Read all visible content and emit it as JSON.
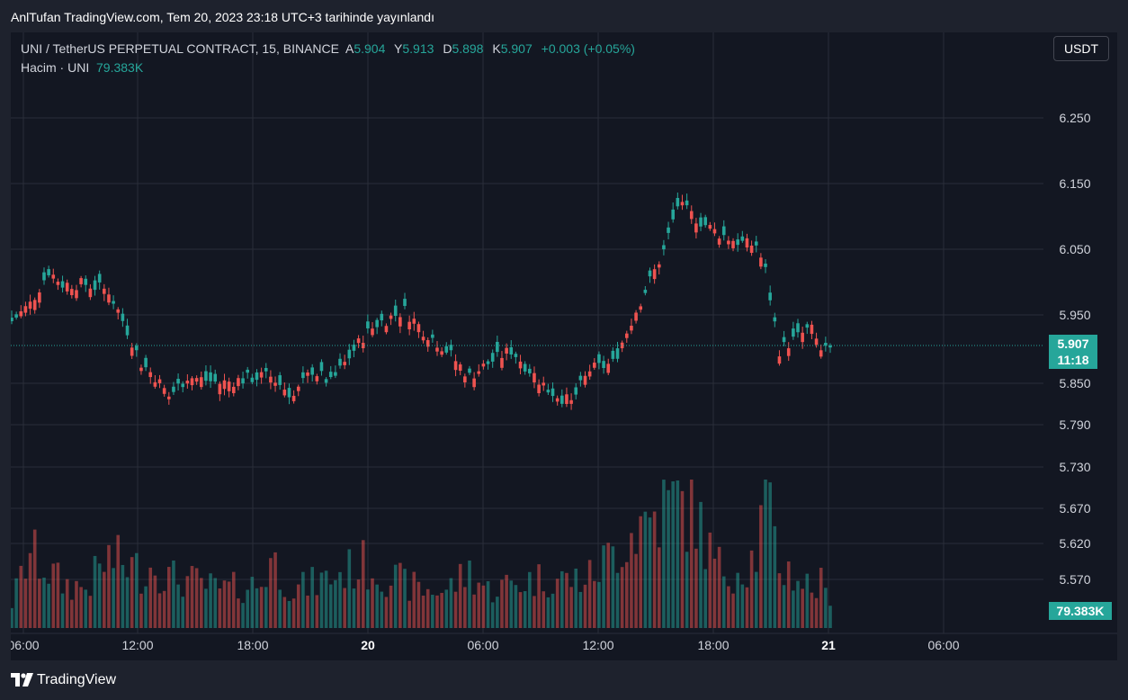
{
  "publish_note": "AnlTufan TradingView.com, Tem 20, 2023 23:18 UTC+3 tarihinde yayınlandı",
  "legend": {
    "symbol": "UNI / TetherUS PERPETUAL CONTRACT, 15, BINANCE",
    "open_label": "A",
    "open": "5.904",
    "high_label": "Y",
    "high": "5.913",
    "low_label": "D",
    "low": "5.898",
    "close_label": "K",
    "close": "5.907",
    "change": "+0.003 (+0.05%)",
    "volume_label": "Hacim · UNI",
    "volume": "79.383K"
  },
  "currency": "USDT",
  "price_badge": {
    "price": "5.907",
    "countdown": "11:18"
  },
  "volume_badge": "79.383K",
  "footer_brand": "TradingView",
  "colors": {
    "up": "#26a69a",
    "down": "#ef5350",
    "background": "#131722",
    "grid": "#2a2e39",
    "text": "#d1d4dc"
  },
  "chart_data": {
    "type": "candlestick",
    "interval": "15m",
    "y_tick_labels": [
      "6.250",
      "6.150",
      "6.050",
      "5.950",
      "5.850",
      "5.790",
      "5.730",
      "5.670",
      "5.620",
      "5.570"
    ],
    "x_tick_labels": [
      "06:00",
      "12:00",
      "18:00",
      "20",
      "06:00",
      "12:00",
      "18:00",
      "21",
      "06:00"
    ],
    "current_price": 5.907,
    "current_volume": "79.383K",
    "price_min": 5.81,
    "price_max": 6.16,
    "volume_max_k": 1120,
    "grid": true,
    "candle_count": 178,
    "points": [
      {
        "x": "19 06:00",
        "o": 5.944,
        "c": 5.97,
        "v": 0.2
      },
      {
        "x": "19 06:30",
        "o": 5.97,
        "c": 6.025,
        "v": 0.6
      },
      {
        "x": "19 07:30",
        "o": 6.02,
        "c": 6.0,
        "v": 0.45
      },
      {
        "x": "19 08:00",
        "o": 6.0,
        "c": 6.02,
        "v": 0.35
      },
      {
        "x": "19 09:00",
        "o": 6.0,
        "c": 5.985,
        "v": 0.32
      },
      {
        "x": "19 10:00",
        "o": 5.99,
        "c": 5.96,
        "v": 0.55
      },
      {
        "x": "19 11:00",
        "o": 5.93,
        "c": 5.89,
        "v": 0.5
      },
      {
        "x": "19 11:45",
        "o": 5.88,
        "c": 5.855,
        "v": 0.45
      },
      {
        "x": "19 12:00",
        "o": 5.86,
        "c": 5.83,
        "v": 0.5
      },
      {
        "x": "19 13:00",
        "o": 5.83,
        "c": 5.86,
        "v": 0.4
      },
      {
        "x": "19 14:00",
        "o": 5.86,
        "c": 5.84,
        "v": 0.38
      },
      {
        "x": "19 16:00",
        "o": 5.85,
        "c": 5.87,
        "v": 0.3
      },
      {
        "x": "19 17:00",
        "o": 5.86,
        "c": 5.85,
        "v": 0.35
      },
      {
        "x": "19 18:00",
        "o": 5.86,
        "c": 5.835,
        "v": 0.55
      },
      {
        "x": "19 19:00",
        "o": 5.83,
        "c": 5.87,
        "v": 0.3
      },
      {
        "x": "19 20:00",
        "o": 5.87,
        "c": 5.84,
        "v": 0.35
      },
      {
        "x": "19 21:00",
        "o": 5.85,
        "c": 5.89,
        "v": 0.4
      },
      {
        "x": "19 22:00",
        "o": 5.88,
        "c": 5.92,
        "v": 0.45
      },
      {
        "x": "19 23:00",
        "o": 5.92,
        "c": 5.945,
        "v": 0.5
      },
      {
        "x": "20 00:00",
        "o": 5.94,
        "c": 5.975,
        "v": 0.45
      },
      {
        "x": "20 01:00",
        "o": 5.96,
        "c": 5.93,
        "v": 0.35
      },
      {
        "x": "20 02:00",
        "o": 5.93,
        "c": 5.9,
        "v": 0.3
      },
      {
        "x": "20 03:00",
        "o": 5.9,
        "c": 5.87,
        "v": 0.3
      },
      {
        "x": "20 04:00",
        "o": 5.86,
        "c": 5.88,
        "v": 0.45
      },
      {
        "x": "20 05:00",
        "o": 5.88,
        "c": 5.89,
        "v": 0.3
      },
      {
        "x": "20 06:00",
        "o": 5.9,
        "c": 5.85,
        "v": 0.35
      },
      {
        "x": "20 07:00",
        "o": 5.84,
        "c": 5.82,
        "v": 0.4
      },
      {
        "x": "20 08:00",
        "o": 5.82,
        "c": 5.86,
        "v": 0.38
      },
      {
        "x": "20 09:00",
        "o": 5.87,
        "c": 5.9,
        "v": 0.4
      },
      {
        "x": "20 10:00",
        "o": 5.88,
        "c": 5.95,
        "v": 0.6
      },
      {
        "x": "20 11:00",
        "o": 5.96,
        "c": 6.04,
        "v": 0.8
      },
      {
        "x": "20 12:00",
        "o": 6.05,
        "c": 6.1,
        "v": 0.95
      },
      {
        "x": "20 12:45",
        "o": 6.12,
        "c": 6.13,
        "v": 1.0
      },
      {
        "x": "20 13:30",
        "o": 6.1,
        "c": 6.075,
        "v": 0.9
      },
      {
        "x": "20 14:30",
        "o": 6.08,
        "c": 6.09,
        "v": 0.5
      },
      {
        "x": "20 15:30",
        "o": 6.07,
        "c": 6.05,
        "v": 0.45
      },
      {
        "x": "20 16:30",
        "o": 6.06,
        "c": 6.07,
        "v": 0.5
      },
      {
        "x": "20 17:00",
        "o": 6.06,
        "c": 6.03,
        "v": 0.6
      },
      {
        "x": "20 17:45",
        "o": 6.02,
        "c": 5.91,
        "v": 1.0
      },
      {
        "x": "20 18:30",
        "o": 5.9,
        "c": 5.93,
        "v": 0.5
      },
      {
        "x": "20 19:30",
        "o": 5.92,
        "c": 5.9,
        "v": 0.4
      },
      {
        "x": "20 20:30",
        "o": 5.93,
        "c": 5.94,
        "v": 0.35
      },
      {
        "x": "20 21:30",
        "o": 5.93,
        "c": 5.9,
        "v": 0.3
      },
      {
        "x": "20 22:00",
        "o": 5.9,
        "c": 5.93,
        "v": 0.35
      },
      {
        "x": "20 23:00",
        "o": 5.904,
        "c": 5.907,
        "v": 0.15
      }
    ]
  }
}
